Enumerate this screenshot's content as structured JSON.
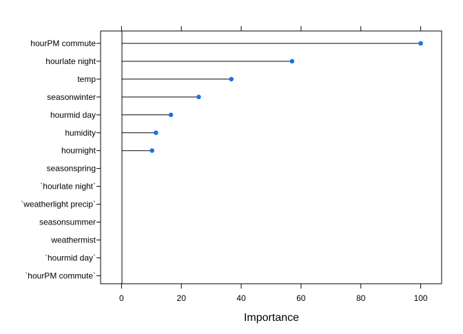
{
  "chart_data": {
    "type": "dotplot",
    "title": "",
    "xlabel": "Importance",
    "ylabel": "",
    "xlim": [
      -7,
      107
    ],
    "xticks": [
      0,
      20,
      40,
      60,
      80,
      100
    ],
    "grid": false,
    "legend": "none",
    "point_color": "#1f6fe8",
    "line_color": "#000000",
    "categories": [
      "hourPM commute",
      "hourlate night",
      "temp",
      "seasonwinter",
      "hourmid day",
      "humidity",
      "hournight",
      "seasonspring",
      "`hourlate night`",
      "`weatherlight precip`",
      "seasonsummer",
      "weathermist",
      "`hourmid day`",
      "`hourPM commute`"
    ],
    "values": [
      100,
      57,
      36.7,
      25.8,
      16.5,
      11.5,
      10.2,
      null,
      null,
      null,
      null,
      null,
      null,
      null
    ]
  }
}
